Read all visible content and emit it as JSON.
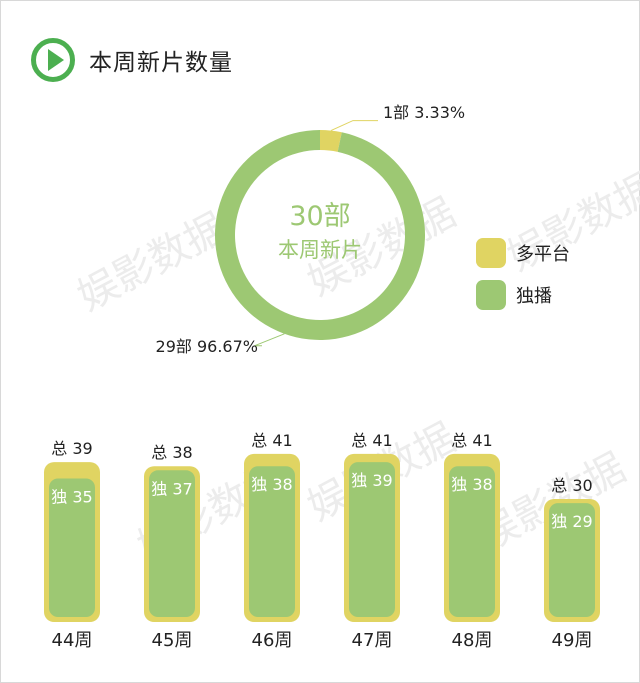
{
  "header": {
    "title": "本周新片数量"
  },
  "colors": {
    "accent": "#4caf50",
    "solo": "#9dc873",
    "multi": "#e0d462"
  },
  "chart_data": [
    {
      "type": "pie",
      "center_value": "30部",
      "center_label": "本周新片",
      "slices": [
        {
          "name": "多平台",
          "count": 1,
          "label": "1部  3.33%",
          "value": 3.33
        },
        {
          "name": "独播",
          "count": 29,
          "label": "29部  96.67%",
          "value": 96.67
        }
      ]
    },
    {
      "type": "bar",
      "categories": [
        "44周",
        "45周",
        "46周",
        "47周",
        "48周",
        "49周"
      ],
      "series": [
        {
          "name": "总",
          "values": [
            39,
            38,
            41,
            41,
            41,
            30
          ]
        },
        {
          "name": "独",
          "values": [
            35,
            37,
            38,
            39,
            38,
            29
          ]
        }
      ],
      "total_labels": [
        "总 39",
        "总 38",
        "总 41",
        "总 41",
        "总 41",
        "总 30"
      ],
      "solo_labels": [
        "独 35",
        "独 37",
        "独 38",
        "独 39",
        "独 38",
        "独 29"
      ]
    }
  ],
  "legend": [
    {
      "label": "多平台",
      "color": "#e0d462"
    },
    {
      "label": "独播",
      "color": "#9dc873"
    }
  ],
  "watermark": "娱影数据"
}
